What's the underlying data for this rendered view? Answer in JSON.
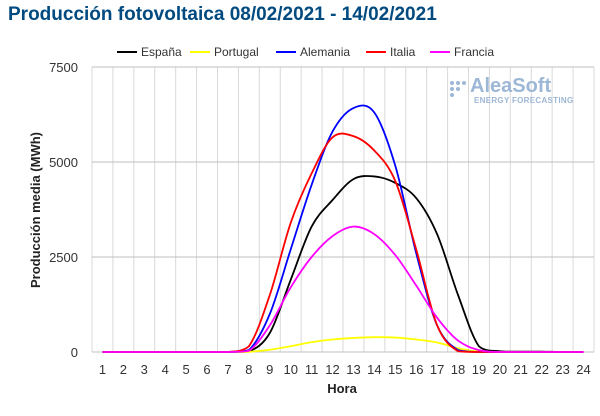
{
  "chart_data": {
    "type": "line",
    "title": "Producción fotovoltaica 08/02/2021 - 14/02/2021",
    "xlabel": "Hora",
    "ylabel": "Producción media (MWh)",
    "categories": [
      1,
      2,
      3,
      4,
      5,
      6,
      7,
      8,
      9,
      10,
      11,
      12,
      13,
      14,
      15,
      16,
      17,
      18,
      19,
      20,
      21,
      22,
      23,
      24
    ],
    "ylim": [
      0,
      7500
    ],
    "yticks": [
      0,
      2500,
      5000,
      7500
    ],
    "grid": true,
    "legend_position": "top",
    "series": [
      {
        "name": "España",
        "color": "#000000",
        "values": [
          0,
          0,
          0,
          0,
          0,
          0,
          0,
          10,
          500,
          1900,
          3300,
          4000,
          4550,
          4620,
          4450,
          4050,
          3100,
          1500,
          150,
          20,
          10,
          10,
          0,
          0
        ]
      },
      {
        "name": "Portugal",
        "color": "#ffff00",
        "values": [
          0,
          0,
          0,
          0,
          0,
          0,
          0,
          5,
          60,
          150,
          260,
          330,
          370,
          390,
          380,
          330,
          250,
          100,
          10,
          0,
          0,
          0,
          0,
          0
        ]
      },
      {
        "name": "Alemania",
        "color": "#0000ff",
        "values": [
          0,
          0,
          0,
          0,
          0,
          0,
          0,
          50,
          1000,
          2700,
          4400,
          5800,
          6420,
          6300,
          4900,
          2600,
          700,
          50,
          0,
          0,
          0,
          0,
          0,
          0
        ]
      },
      {
        "name": "Italia",
        "color": "#ff0000",
        "values": [
          0,
          0,
          0,
          0,
          0,
          0,
          0,
          150,
          1500,
          3400,
          4700,
          5650,
          5680,
          5300,
          4500,
          2700,
          700,
          20,
          0,
          0,
          0,
          0,
          0,
          0
        ]
      },
      {
        "name": "Francia",
        "color": "#ff00ff",
        "values": [
          0,
          0,
          0,
          0,
          0,
          0,
          0,
          30,
          700,
          1700,
          2500,
          3050,
          3300,
          3100,
          2550,
          1750,
          900,
          300,
          50,
          0,
          0,
          0,
          0,
          0
        ]
      }
    ]
  },
  "logo": {
    "name": "AleaSoft",
    "tagline": "ENERGY FORECASTING"
  }
}
